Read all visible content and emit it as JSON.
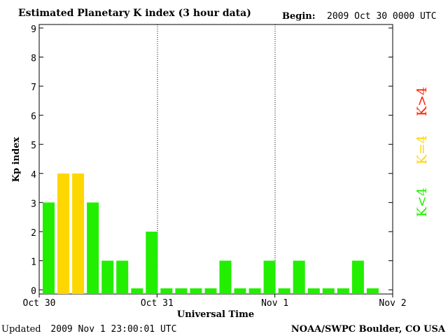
{
  "chart_data": {
    "type": "bar",
    "title": "Estimated Planetary K index (3 hour data)",
    "begin_label": "Begin:",
    "begin_value": "2009 Oct 30 0000 UTC",
    "ylabel": "Kp index",
    "xlabel": "Universal Time",
    "ylim": [
      0,
      9
    ],
    "yticks": [
      "0",
      "1",
      "2",
      "3",
      "4",
      "5",
      "6",
      "7",
      "8",
      "9"
    ],
    "xticks": [
      "Oct 30",
      "Oct 31",
      "Nov 1",
      "Nov 2"
    ],
    "values": [
      3,
      4,
      4,
      3,
      1,
      1,
      0.05,
      2,
      0.05,
      0.05,
      0.05,
      0.05,
      1,
      0.05,
      0.05,
      1,
      0.05,
      1,
      0.05,
      0.05,
      0.05,
      1,
      0.05
    ],
    "colors": {
      "low": "#22ee00",
      "equal": "#ffd700",
      "high": "#ff2200"
    },
    "legend": [
      {
        "label": "K<4",
        "color": "#22ee00"
      },
      {
        "label": "K=4",
        "color": "#ffd700"
      },
      {
        "label": "K>4",
        "color": "#ff2200"
      }
    ],
    "grid": false,
    "day_separators": true
  },
  "footer": {
    "updated_label": "Updated",
    "updated_value": "2009 Nov  1 23:00:01 UTC",
    "source": "NOAA/SWPC Boulder, CO USA"
  }
}
